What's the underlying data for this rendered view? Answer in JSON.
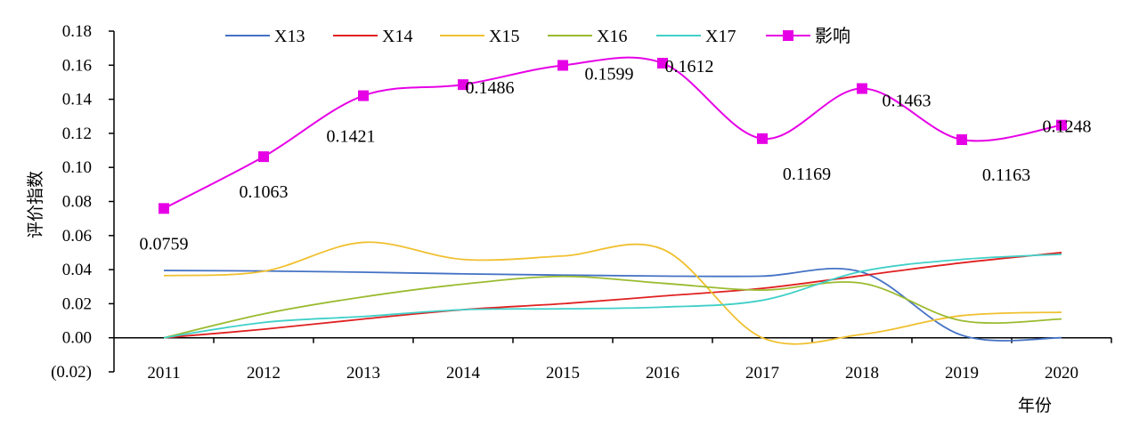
{
  "chart_data": {
    "type": "line",
    "xlabel": "年份",
    "ylabel": "评价指数",
    "categories": [
      "2011",
      "2012",
      "2013",
      "2014",
      "2015",
      "2016",
      "2017",
      "2018",
      "2019",
      "2020"
    ],
    "ylim": [
      -0.02,
      0.18
    ],
    "yticks": [
      {
        "value": 0.18,
        "label": "0.18",
        "color": "#000000"
      },
      {
        "value": 0.16,
        "label": "0.16",
        "color": "#000000"
      },
      {
        "value": 0.14,
        "label": "0.14",
        "color": "#000000"
      },
      {
        "value": 0.12,
        "label": "0.12",
        "color": "#000000"
      },
      {
        "value": 0.1,
        "label": "0.10",
        "color": "#000000"
      },
      {
        "value": 0.08,
        "label": "0.08",
        "color": "#000000"
      },
      {
        "value": 0.06,
        "label": "0.06",
        "color": "#000000"
      },
      {
        "value": 0.04,
        "label": "0.04",
        "color": "#000000"
      },
      {
        "value": 0.02,
        "label": "0.02",
        "color": "#000000"
      },
      {
        "value": 0.0,
        "label": "0.00",
        "color": "#000000"
      },
      {
        "value": -0.02,
        "label": "(0.02)",
        "color": "#e00000"
      }
    ],
    "grid": false,
    "legend_position": "top",
    "series": [
      {
        "name": "X13",
        "color": "#4472c4",
        "marker": "none",
        "smooth": true,
        "values": [
          0.0395,
          0.0392,
          0.0385,
          0.0375,
          0.0368,
          0.0362,
          0.0362,
          0.0385,
          0.0015,
          0.0
        ]
      },
      {
        "name": "X14",
        "color": "#e02020",
        "marker": "none",
        "smooth": true,
        "values": [
          0.0,
          0.005,
          0.011,
          0.0165,
          0.02,
          0.0245,
          0.029,
          0.0365,
          0.044,
          0.05
        ]
      },
      {
        "name": "X15",
        "color": "#f0c030",
        "marker": "none",
        "smooth": true,
        "values": [
          0.0365,
          0.039,
          0.056,
          0.046,
          0.048,
          0.052,
          0.0,
          0.002,
          0.013,
          0.015
        ]
      },
      {
        "name": "X16",
        "color": "#9bbb30",
        "marker": "none",
        "smooth": true,
        "values": [
          0.0,
          0.014,
          0.024,
          0.0315,
          0.036,
          0.032,
          0.028,
          0.032,
          0.01,
          0.011
        ]
      },
      {
        "name": "X17",
        "color": "#40d0c8",
        "marker": "none",
        "smooth": true,
        "values": [
          0.0,
          0.009,
          0.0125,
          0.0165,
          0.017,
          0.018,
          0.022,
          0.039,
          0.046,
          0.049
        ]
      },
      {
        "name": "影响",
        "color": "#e600e6",
        "marker": "square",
        "smooth": true,
        "values": [
          0.0759,
          0.1063,
          0.1421,
          0.1486,
          0.1599,
          0.1612,
          0.1169,
          0.1463,
          0.1163,
          0.1248
        ],
        "data_labels": [
          "0.0759",
          "0.1063",
          "0.1421",
          "0.1486",
          "0.1599",
          "0.1612",
          "0.1169",
          "0.1463",
          "0.1163",
          "0.1248"
        ]
      }
    ]
  }
}
